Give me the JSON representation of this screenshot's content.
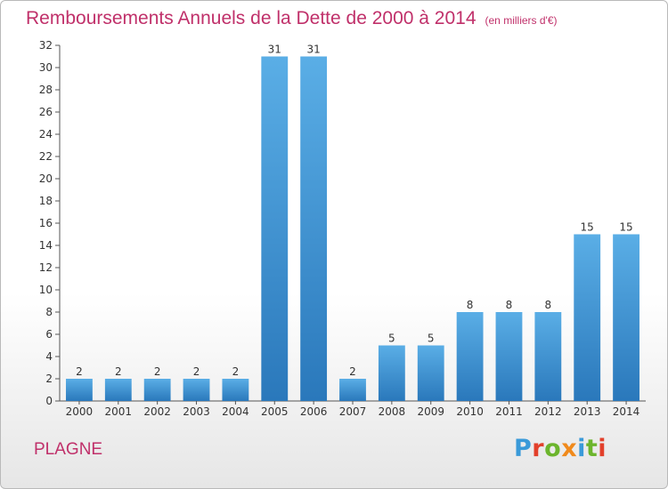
{
  "title": "Remboursements Annuels de la Dette de 2000 à 2014",
  "unit": "(en milliers d'€)",
  "commune": "PLAGNE",
  "logo": {
    "letters": [
      "P",
      "r",
      "o",
      "x",
      "i",
      "t",
      "i"
    ],
    "colors": [
      "#3a9ad9",
      "#e2402b",
      "#6cb52d",
      "#f08a1c",
      "#3a9ad9",
      "#6cb52d",
      "#e2402b"
    ]
  },
  "colors": {
    "bar_light": "#5aaee6",
    "bar_dark": "#2a78bb",
    "title": "#c0306a"
  },
  "chart_data": {
    "type": "bar",
    "title": "Remboursements Annuels de la Dette de 2000 à 2014",
    "categories": [
      "2000",
      "2001",
      "2002",
      "2003",
      "2004",
      "2005",
      "2006",
      "2007",
      "2008",
      "2009",
      "2010",
      "2011",
      "2012",
      "2013",
      "2014"
    ],
    "values": [
      2,
      2,
      2,
      2,
      2,
      31,
      31,
      2,
      5,
      5,
      8,
      8,
      8,
      15,
      15
    ],
    "ylim": [
      0,
      32
    ],
    "yticks": [
      0,
      2,
      4,
      6,
      8,
      10,
      12,
      14,
      16,
      18,
      20,
      22,
      24,
      26,
      28,
      30,
      32
    ],
    "grid": false,
    "xlabel": "",
    "ylabel": ""
  }
}
